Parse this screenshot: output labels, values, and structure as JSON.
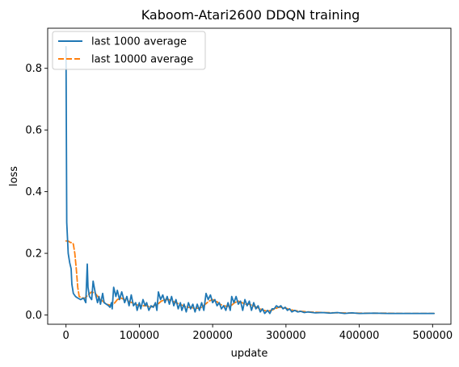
{
  "chart_data": {
    "type": "line",
    "title": "Kaboom-Atari2600 DDQN training",
    "xlabel": "update",
    "ylabel": "loss",
    "xlim": [
      -25000,
      525000
    ],
    "ylim": [
      -0.03,
      0.93
    ],
    "xticks": [
      0,
      100000,
      200000,
      300000,
      400000,
      500000
    ],
    "yticks": [
      0.0,
      0.2,
      0.4,
      0.6,
      0.8
    ],
    "legend_position": "top-left",
    "series": [
      {
        "name": "last 1000 average",
        "color": "#1f77b4",
        "style": "solid",
        "points": [
          [
            0,
            0.87
          ],
          [
            1000,
            0.3
          ],
          [
            3000,
            0.2
          ],
          [
            5000,
            0.17
          ],
          [
            7000,
            0.15
          ],
          [
            8000,
            0.1
          ],
          [
            10000,
            0.07
          ],
          [
            13000,
            0.06
          ],
          [
            16000,
            0.055
          ],
          [
            20000,
            0.05
          ],
          [
            24000,
            0.055
          ],
          [
            27000,
            0.04
          ],
          [
            29000,
            0.165
          ],
          [
            30000,
            0.09
          ],
          [
            32000,
            0.06
          ],
          [
            35000,
            0.05
          ],
          [
            37000,
            0.11
          ],
          [
            40000,
            0.07
          ],
          [
            43000,
            0.04
          ],
          [
            45000,
            0.06
          ],
          [
            47000,
            0.035
          ],
          [
            50000,
            0.07
          ],
          [
            52000,
            0.04
          ],
          [
            55000,
            0.035
          ],
          [
            58000,
            0.03
          ],
          [
            60000,
            0.025
          ],
          [
            62000,
            0.04
          ],
          [
            63000,
            0.02
          ],
          [
            65000,
            0.09
          ],
          [
            68000,
            0.06
          ],
          [
            70000,
            0.08
          ],
          [
            73000,
            0.05
          ],
          [
            76000,
            0.075
          ],
          [
            80000,
            0.04
          ],
          [
            83000,
            0.06
          ],
          [
            86000,
            0.03
          ],
          [
            89000,
            0.065
          ],
          [
            92000,
            0.03
          ],
          [
            95000,
            0.04
          ],
          [
            97000,
            0.015
          ],
          [
            100000,
            0.04
          ],
          [
            102000,
            0.02
          ],
          [
            105000,
            0.05
          ],
          [
            108000,
            0.03
          ],
          [
            110000,
            0.04
          ],
          [
            113000,
            0.015
          ],
          [
            116000,
            0.03
          ],
          [
            119000,
            0.025
          ],
          [
            122000,
            0.04
          ],
          [
            124000,
            0.015
          ],
          [
            126000,
            0.075
          ],
          [
            129000,
            0.05
          ],
          [
            132000,
            0.065
          ],
          [
            135000,
            0.04
          ],
          [
            138000,
            0.06
          ],
          [
            141000,
            0.035
          ],
          [
            144000,
            0.06
          ],
          [
            147000,
            0.03
          ],
          [
            150000,
            0.05
          ],
          [
            153000,
            0.02
          ],
          [
            156000,
            0.04
          ],
          [
            158000,
            0.015
          ],
          [
            161000,
            0.035
          ],
          [
            164000,
            0.01
          ],
          [
            167000,
            0.04
          ],
          [
            170000,
            0.02
          ],
          [
            173000,
            0.035
          ],
          [
            176000,
            0.01
          ],
          [
            179000,
            0.035
          ],
          [
            182000,
            0.015
          ],
          [
            185000,
            0.04
          ],
          [
            188000,
            0.015
          ],
          [
            191000,
            0.07
          ],
          [
            194000,
            0.05
          ],
          [
            197000,
            0.065
          ],
          [
            200000,
            0.04
          ],
          [
            203000,
            0.05
          ],
          [
            206000,
            0.03
          ],
          [
            209000,
            0.04
          ],
          [
            212000,
            0.02
          ],
          [
            215000,
            0.03
          ],
          [
            218000,
            0.015
          ],
          [
            221000,
            0.04
          ],
          [
            224000,
            0.015
          ],
          [
            226000,
            0.06
          ],
          [
            229000,
            0.04
          ],
          [
            232000,
            0.06
          ],
          [
            235000,
            0.035
          ],
          [
            238000,
            0.045
          ],
          [
            241000,
            0.015
          ],
          [
            244000,
            0.05
          ],
          [
            247000,
            0.03
          ],
          [
            250000,
            0.045
          ],
          [
            253000,
            0.015
          ],
          [
            256000,
            0.04
          ],
          [
            259000,
            0.02
          ],
          [
            262000,
            0.03
          ],
          [
            265000,
            0.01
          ],
          [
            268000,
            0.02
          ],
          [
            271000,
            0.005
          ],
          [
            275000,
            0.015
          ],
          [
            278000,
            0.005
          ],
          [
            281000,
            0.02
          ],
          [
            284000,
            0.02
          ],
          [
            287000,
            0.03
          ],
          [
            290000,
            0.025
          ],
          [
            293000,
            0.03
          ],
          [
            296000,
            0.02
          ],
          [
            299000,
            0.025
          ],
          [
            302000,
            0.015
          ],
          [
            305000,
            0.02
          ],
          [
            308000,
            0.01
          ],
          [
            312000,
            0.015
          ],
          [
            316000,
            0.01
          ],
          [
            320000,
            0.012
          ],
          [
            325000,
            0.008
          ],
          [
            330000,
            0.01
          ],
          [
            340000,
            0.007
          ],
          [
            350000,
            0.008
          ],
          [
            360000,
            0.006
          ],
          [
            370000,
            0.008
          ],
          [
            380000,
            0.005
          ],
          [
            390000,
            0.007
          ],
          [
            400000,
            0.005
          ],
          [
            420000,
            0.006
          ],
          [
            440000,
            0.005
          ],
          [
            460000,
            0.005
          ],
          [
            480000,
            0.005
          ],
          [
            502000,
            0.005
          ]
        ]
      },
      {
        "name": "last 10000 average",
        "color": "#ff7f0e",
        "style": "dashed",
        "points": [
          [
            0,
            0.24
          ],
          [
            3000,
            0.24
          ],
          [
            6000,
            0.235
          ],
          [
            8000,
            0.235
          ],
          [
            10000,
            0.23
          ],
          [
            12000,
            0.2
          ],
          [
            14000,
            0.15
          ],
          [
            16000,
            0.09
          ],
          [
            18000,
            0.06
          ],
          [
            22000,
            0.055
          ],
          [
            26000,
            0.055
          ],
          [
            30000,
            0.065
          ],
          [
            35000,
            0.075
          ],
          [
            40000,
            0.07
          ],
          [
            45000,
            0.055
          ],
          [
            50000,
            0.045
          ],
          [
            55000,
            0.035
          ],
          [
            60000,
            0.032
          ],
          [
            65000,
            0.035
          ],
          [
            70000,
            0.05
          ],
          [
            75000,
            0.055
          ],
          [
            80000,
            0.05
          ],
          [
            85000,
            0.045
          ],
          [
            90000,
            0.04
          ],
          [
            95000,
            0.035
          ],
          [
            100000,
            0.03
          ],
          [
            105000,
            0.03
          ],
          [
            110000,
            0.03
          ],
          [
            115000,
            0.025
          ],
          [
            120000,
            0.03
          ],
          [
            125000,
            0.035
          ],
          [
            130000,
            0.045
          ],
          [
            135000,
            0.05
          ],
          [
            140000,
            0.05
          ],
          [
            145000,
            0.045
          ],
          [
            150000,
            0.04
          ],
          [
            155000,
            0.035
          ],
          [
            160000,
            0.03
          ],
          [
            165000,
            0.025
          ],
          [
            170000,
            0.025
          ],
          [
            175000,
            0.022
          ],
          [
            180000,
            0.022
          ],
          [
            185000,
            0.025
          ],
          [
            190000,
            0.035
          ],
          [
            195000,
            0.045
          ],
          [
            200000,
            0.05
          ],
          [
            205000,
            0.045
          ],
          [
            210000,
            0.035
          ],
          [
            215000,
            0.03
          ],
          [
            220000,
            0.028
          ],
          [
            225000,
            0.03
          ],
          [
            230000,
            0.04
          ],
          [
            235000,
            0.045
          ],
          [
            240000,
            0.04
          ],
          [
            245000,
            0.035
          ],
          [
            250000,
            0.035
          ],
          [
            255000,
            0.03
          ],
          [
            260000,
            0.025
          ],
          [
            265000,
            0.02
          ],
          [
            270000,
            0.015
          ],
          [
            275000,
            0.012
          ],
          [
            280000,
            0.015
          ],
          [
            285000,
            0.02
          ],
          [
            290000,
            0.025
          ],
          [
            295000,
            0.025
          ],
          [
            300000,
            0.022
          ],
          [
            305000,
            0.018
          ],
          [
            310000,
            0.015
          ],
          [
            320000,
            0.012
          ],
          [
            330000,
            0.01
          ],
          [
            340000,
            0.009
          ],
          [
            350000,
            0.008
          ],
          [
            370000,
            0.007
          ],
          [
            400000,
            0.006
          ],
          [
            430000,
            0.006
          ],
          [
            460000,
            0.005
          ],
          [
            502000,
            0.005
          ]
        ]
      }
    ]
  }
}
